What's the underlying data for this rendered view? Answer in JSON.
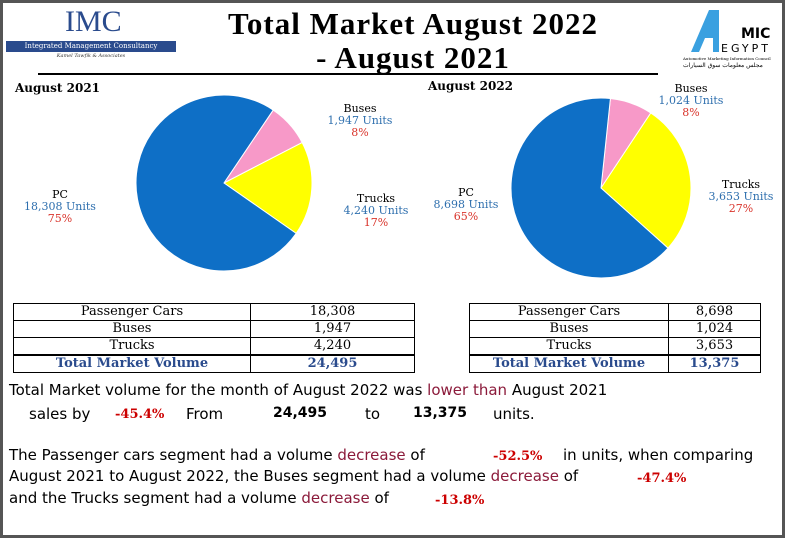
{
  "header": {
    "title_line1": "Total Market August 2022",
    "title_line2": "- August 2021",
    "imc_logo": "IMC",
    "imc_name": "Integrated Management Consultancy",
    "imc_sub": "Kamel Tawfik & Associates",
    "amic_logo": "AMIC EGYPT",
    "amic_sub": "Automotive Marketing Information Council",
    "amic_arabic": "مجلس معلومات سوق السيارات"
  },
  "chart_data": [
    {
      "type": "pie",
      "title": "August 2021",
      "colors": [
        "#0e6fc6",
        "#f799c8",
        "#ffff00"
      ],
      "slices": [
        {
          "name": "PC",
          "units": "18,308 Units",
          "value": 18308,
          "pct": "75%"
        },
        {
          "name": "Buses",
          "units": "1,947  Units",
          "value": 1947,
          "pct": "8%"
        },
        {
          "name": "Trucks",
          "units": "4,240 Units",
          "value": 4240,
          "pct": "17%"
        }
      ]
    },
    {
      "type": "pie",
      "title": "August 2022",
      "colors": [
        "#0e6fc6",
        "#f799c8",
        "#ffff00"
      ],
      "slices": [
        {
          "name": "PC",
          "units": "8,698 Units",
          "value": 8698,
          "pct": "65%"
        },
        {
          "name": "Buses",
          "units": "1,024 Units",
          "value": 1024,
          "pct": "8%"
        },
        {
          "name": "Trucks",
          "units": "3,653 Units",
          "value": 3653,
          "pct": "27%"
        }
      ]
    }
  ],
  "tables": [
    {
      "rows": [
        [
          "Passenger Cars",
          "18,308"
        ],
        [
          "Buses",
          "1,947"
        ],
        [
          "Trucks",
          "4,240"
        ]
      ],
      "total": [
        "Total Market Volume",
        "24,495"
      ]
    },
    {
      "rows": [
        [
          "Passenger Cars",
          "8,698"
        ],
        [
          "Buses",
          "1,024"
        ],
        [
          "Trucks",
          "3,653"
        ]
      ],
      "total": [
        "Total Market Volume",
        "13,375"
      ]
    }
  ],
  "summary": {
    "s1a": "Total Market volume for the month of August 2022 was ",
    "s1b": "lower than",
    "s1c": " August 2021",
    "s2a": "sales by",
    "s2b": "-45.4%",
    "s2c": "From",
    "s2d": "24,495",
    "s2e": "to",
    "s2f": "13,375",
    "s2g": "units.",
    "p1": "The Passenger cars segment had a volume ",
    "p1d": "decrease",
    "p1b": " of",
    "p1v": "-52.5%",
    "p1c": "in units, when comparing",
    "p2": "August 2021 to August 2022, the Buses segment had a volume ",
    "p2d": "decrease",
    "p2b": " of",
    "p2v": "-47.4%",
    "p3": "and the Trucks segment had a volume ",
    "p3d": "decrease",
    "p3b": " of",
    "p3v": "-13.8%"
  }
}
